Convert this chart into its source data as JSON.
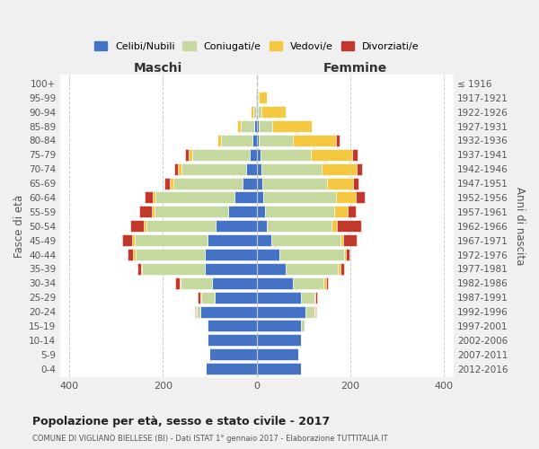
{
  "age_groups": [
    "0-4",
    "5-9",
    "10-14",
    "15-19",
    "20-24",
    "25-29",
    "30-34",
    "35-39",
    "40-44",
    "45-49",
    "50-54",
    "55-59",
    "60-64",
    "65-69",
    "70-74",
    "75-79",
    "80-84",
    "85-89",
    "90-94",
    "95-99",
    "100+"
  ],
  "birth_years": [
    "2012-2016",
    "2007-2011",
    "2002-2006",
    "1997-2001",
    "1992-1996",
    "1987-1991",
    "1982-1986",
    "1977-1981",
    "1972-1976",
    "1967-1971",
    "1962-1966",
    "1957-1961",
    "1952-1956",
    "1947-1951",
    "1942-1946",
    "1937-1941",
    "1932-1936",
    "1927-1931",
    "1922-1926",
    "1917-1921",
    "≤ 1916"
  ],
  "maschi": {
    "celibi": [
      108,
      100,
      105,
      105,
      120,
      90,
      95,
      110,
      110,
      105,
      88,
      60,
      48,
      30,
      22,
      15,
      8,
      5,
      2,
      2,
      0
    ],
    "coniugati": [
      0,
      0,
      0,
      2,
      8,
      28,
      68,
      135,
      148,
      155,
      148,
      158,
      168,
      148,
      138,
      122,
      68,
      28,
      5,
      2,
      0
    ],
    "vedovi": [
      0,
      0,
      0,
      0,
      2,
      2,
      2,
      2,
      5,
      5,
      5,
      5,
      5,
      8,
      8,
      8,
      8,
      8,
      5,
      0,
      0
    ],
    "divorziati": [
      0,
      0,
      0,
      0,
      2,
      5,
      8,
      8,
      12,
      22,
      28,
      28,
      18,
      10,
      8,
      8,
      0,
      0,
      0,
      0,
      0
    ]
  },
  "femmine": {
    "nubili": [
      95,
      88,
      95,
      95,
      105,
      95,
      78,
      62,
      48,
      32,
      22,
      18,
      15,
      12,
      10,
      8,
      5,
      5,
      2,
      2,
      0
    ],
    "coniugate": [
      0,
      0,
      0,
      8,
      18,
      28,
      65,
      112,
      138,
      148,
      138,
      148,
      155,
      138,
      128,
      108,
      72,
      28,
      8,
      2,
      0
    ],
    "vedove": [
      0,
      0,
      0,
      0,
      2,
      2,
      5,
      5,
      5,
      5,
      12,
      28,
      42,
      55,
      75,
      88,
      92,
      85,
      52,
      18,
      2
    ],
    "divorziate": [
      0,
      0,
      0,
      0,
      2,
      5,
      5,
      8,
      8,
      28,
      52,
      18,
      18,
      12,
      12,
      12,
      8,
      0,
      0,
      0,
      0
    ]
  },
  "colors": {
    "celibi_nubili": "#4472c4",
    "coniugati_e": "#c5d8a0",
    "vedovi_e": "#f5c842",
    "divorziati_e": "#c0392b"
  },
  "title": "Popolazione per età, sesso e stato civile - 2017",
  "subtitle": "COMUNE DI VIGLIANO BIELLESE (BI) - Dati ISTAT 1° gennaio 2017 - Elaborazione TUTTITALIA.IT",
  "xlabel_left": "Maschi",
  "xlabel_right": "Femmine",
  "ylabel_left": "Fasce di età",
  "ylabel_right": "Anni di nascita",
  "legend_labels": [
    "Celibi/Nubili",
    "Coniugati/e",
    "Vedovi/e",
    "Divorziati/e"
  ],
  "xlim": 420,
  "background_color": "#f0f0f0",
  "plot_bg": "#ffffff"
}
